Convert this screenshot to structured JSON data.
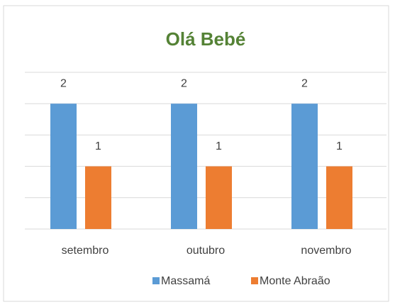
{
  "chart_data": {
    "type": "bar",
    "title": "Olá Bebé",
    "categories": [
      "setembro",
      "outubro",
      "novembro"
    ],
    "series": [
      {
        "name": "Massamá",
        "color": "#5b9bd5",
        "values": [
          2,
          2,
          2
        ]
      },
      {
        "name": "Monte Abraão",
        "color": "#ed7d31",
        "values": [
          1,
          1,
          1
        ]
      }
    ],
    "ylim": [
      0,
      2.5
    ],
    "yticks": [
      0,
      0.5,
      1,
      1.5,
      2,
      2.5
    ],
    "grid": true,
    "legend": "bottom"
  }
}
